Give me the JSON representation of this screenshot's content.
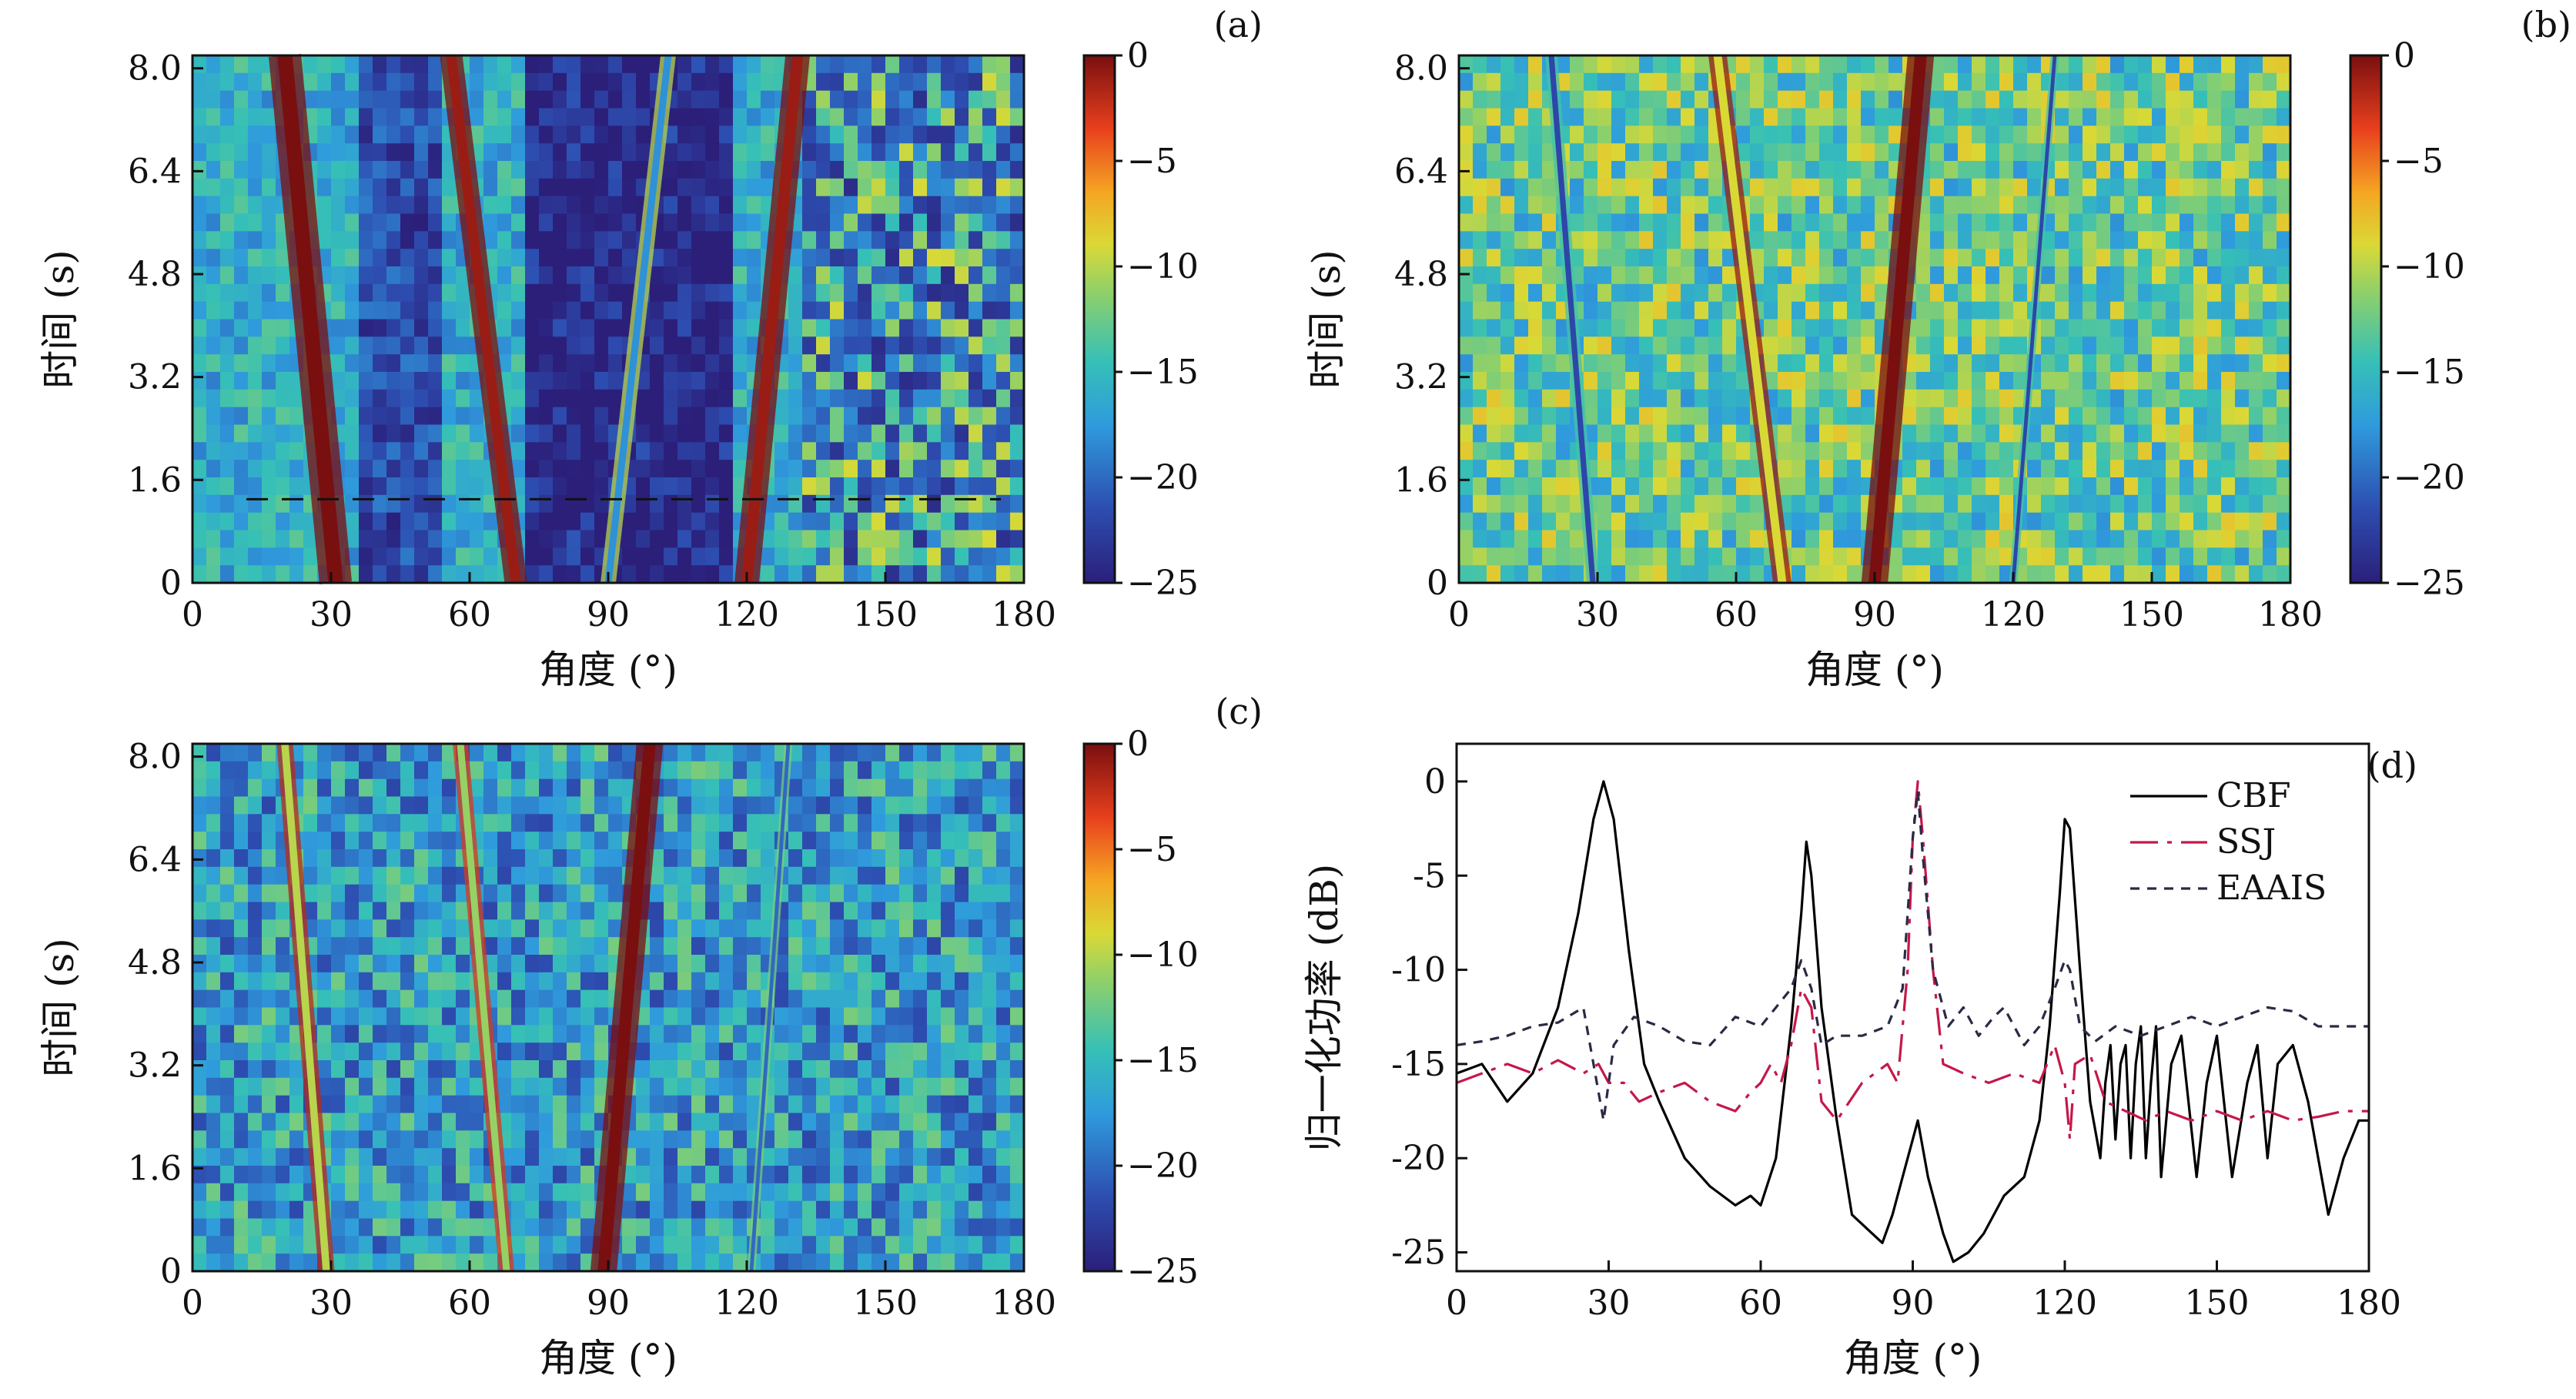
{
  "panels": [
    {
      "label": "(a)",
      "type": "heatmap",
      "xlabel": "角度 (°)",
      "ylabel": "时间 (s)",
      "xlim": [
        0,
        180
      ],
      "ylim": [
        0,
        8.2
      ],
      "xticks": [
        0,
        30,
        60,
        90,
        120,
        150,
        180
      ],
      "yticks": [
        "0",
        "1.6",
        "3.2",
        "4.8",
        "6.4",
        "8.0"
      ],
      "colorbar": {
        "range": [
          -25,
          0
        ],
        "ticks": [
          "0",
          "−5",
          "−10",
          "−15",
          "−20",
          "−25"
        ]
      },
      "background_db": -16,
      "tracks": [
        {
          "x0": 31,
          "x1": 20,
          "peak_db": 0,
          "width": 3.2
        },
        {
          "x0": 70,
          "x1": 56,
          "peak_db": -1,
          "width": 2.2
        },
        {
          "x0": 90,
          "x1": 103,
          "peak_db": -18,
          "width": 1.5
        },
        {
          "x0": 120,
          "x1": 131,
          "peak_db": -1,
          "width": 2.4
        }
      ],
      "dashed_line_time": 1.3
    },
    {
      "label": "(b)",
      "type": "heatmap",
      "xlabel": "角度 (°)",
      "ylabel": "时间 (s)",
      "xlim": [
        0,
        180
      ],
      "ylim": [
        0,
        8.2
      ],
      "xticks": [
        0,
        30,
        60,
        90,
        120,
        150,
        180
      ],
      "yticks": [
        "0",
        "1.6",
        "3.2",
        "4.8",
        "6.4",
        "8.0"
      ],
      "colorbar": {
        "range": [
          -25,
          0
        ],
        "ticks": [
          "0",
          "−5",
          "−10",
          "−15",
          "−20",
          "−25"
        ]
      },
      "background_db": -13,
      "tracks": [
        {
          "x0": 29,
          "x1": 20,
          "peak_db": -22,
          "width": 1.2
        },
        {
          "x0": 70,
          "x1": 56,
          "peak_db": -9,
          "width": 1.8
        },
        {
          "x0": 90,
          "x1": 100,
          "peak_db": 0,
          "width": 2.6
        },
        {
          "x0": 120,
          "x1": 129,
          "peak_db": -22,
          "width": 0.8
        }
      ]
    },
    {
      "label": "(c)",
      "type": "heatmap",
      "xlabel": "角度 (°)",
      "ylabel": "时间 (s)",
      "xlim": [
        0,
        180
      ],
      "ylim": [
        0,
        8.2
      ],
      "xticks": [
        0,
        30,
        60,
        90,
        120,
        150,
        180
      ],
      "yticks": [
        "0",
        "1.6",
        "3.2",
        "4.8",
        "6.4",
        "8.0"
      ],
      "colorbar": {
        "range": [
          -25,
          0
        ],
        "ticks": [
          "0",
          "−5",
          "−10",
          "−15",
          "−20",
          "−25"
        ]
      },
      "background_db": -17,
      "tracks": [
        {
          "x0": 29,
          "x1": 20,
          "peak_db": -10,
          "width": 1.6
        },
        {
          "x0": 68,
          "x1": 58,
          "peak_db": -11,
          "width": 1.5
        },
        {
          "x0": 89,
          "x1": 99,
          "peak_db": 0,
          "width": 2.6
        },
        {
          "x0": 121,
          "x1": 129,
          "peak_db": -20,
          "width": 0.8
        }
      ]
    },
    {
      "label": "(d)",
      "type": "line",
      "xlabel": "角度 (°)",
      "ylabel": "归一化功率 (dB)",
      "xlim": [
        0,
        180
      ],
      "ylim": [
        -26,
        2
      ],
      "xticks": [
        0,
        30,
        60,
        90,
        120,
        150,
        180
      ],
      "yticks": [
        0,
        -5,
        -10,
        -15,
        -20,
        -25
      ],
      "legend_position": "top-right"
    }
  ],
  "chart_data": {
    "type": "line",
    "xlabel": "角度 (°)",
    "ylabel": "归一化功率 (dB)",
    "xlim": [
      0,
      180
    ],
    "ylim": [
      -26,
      2
    ],
    "series": [
      {
        "name": "CBF",
        "color": "#000000",
        "dash": "solid",
        "points": [
          [
            0,
            -15.5
          ],
          [
            5,
            -15
          ],
          [
            10,
            -17
          ],
          [
            15,
            -15.5
          ],
          [
            20,
            -12
          ],
          [
            24,
            -7
          ],
          [
            27,
            -2
          ],
          [
            29,
            0
          ],
          [
            31,
            -2
          ],
          [
            34,
            -9
          ],
          [
            37,
            -15
          ],
          [
            40,
            -17
          ],
          [
            45,
            -20
          ],
          [
            50,
            -21.5
          ],
          [
            55,
            -22.5
          ],
          [
            58,
            -22
          ],
          [
            60,
            -22.5
          ],
          [
            63,
            -20
          ],
          [
            66,
            -13
          ],
          [
            68,
            -7
          ],
          [
            69,
            -3.2
          ],
          [
            70,
            -5
          ],
          [
            72,
            -12
          ],
          [
            75,
            -18
          ],
          [
            78,
            -23
          ],
          [
            82,
            -24
          ],
          [
            84,
            -24.5
          ],
          [
            86,
            -23
          ],
          [
            88,
            -21
          ],
          [
            90,
            -19
          ],
          [
            91,
            -18
          ],
          [
            93,
            -21
          ],
          [
            96,
            -24
          ],
          [
            98,
            -25.5
          ],
          [
            101,
            -25
          ],
          [
            104,
            -24
          ],
          [
            108,
            -22
          ],
          [
            112,
            -21
          ],
          [
            115,
            -18
          ],
          [
            117,
            -13
          ],
          [
            119,
            -6
          ],
          [
            120,
            -2
          ],
          [
            121,
            -2.5
          ],
          [
            123,
            -10
          ],
          [
            125,
            -17
          ],
          [
            127,
            -20
          ],
          [
            128,
            -16
          ],
          [
            129,
            -14
          ],
          [
            130,
            -19
          ],
          [
            131,
            -15
          ],
          [
            132,
            -14
          ],
          [
            133,
            -20
          ],
          [
            134,
            -15
          ],
          [
            135,
            -13
          ],
          [
            136,
            -20
          ],
          [
            137,
            -16
          ],
          [
            138,
            -13
          ],
          [
            139,
            -21
          ],
          [
            141,
            -15
          ],
          [
            143,
            -13.5
          ],
          [
            146,
            -21
          ],
          [
            148,
            -16
          ],
          [
            150,
            -13.5
          ],
          [
            153,
            -21
          ],
          [
            156,
            -16
          ],
          [
            158,
            -14
          ],
          [
            160,
            -20
          ],
          [
            162,
            -15
          ],
          [
            165,
            -14
          ],
          [
            168,
            -17
          ],
          [
            172,
            -23
          ],
          [
            175,
            -20
          ],
          [
            178,
            -18
          ],
          [
            180,
            -18
          ]
        ]
      },
      {
        "name": "SSJ",
        "color": "#c4184a",
        "dash": "long-dash",
        "points": [
          [
            0,
            -16
          ],
          [
            5,
            -15.5
          ],
          [
            10,
            -15
          ],
          [
            15,
            -15.5
          ],
          [
            20,
            -14.8
          ],
          [
            25,
            -15.5
          ],
          [
            28,
            -15
          ],
          [
            30,
            -16
          ],
          [
            33,
            -16
          ],
          [
            36,
            -17
          ],
          [
            40,
            -16.5
          ],
          [
            45,
            -16
          ],
          [
            50,
            -17
          ],
          [
            55,
            -17.5
          ],
          [
            58,
            -16.5
          ],
          [
            60,
            -16
          ],
          [
            62,
            -15
          ],
          [
            64,
            -16
          ],
          [
            66,
            -14
          ],
          [
            68,
            -11
          ],
          [
            70,
            -12
          ],
          [
            72,
            -17
          ],
          [
            75,
            -18
          ],
          [
            80,
            -16
          ],
          [
            85,
            -15
          ],
          [
            87,
            -16
          ],
          [
            89,
            -10
          ],
          [
            90,
            -3
          ],
          [
            91,
            0
          ],
          [
            92,
            -3
          ],
          [
            94,
            -10
          ],
          [
            96,
            -15
          ],
          [
            100,
            -15.5
          ],
          [
            105,
            -16
          ],
          [
            110,
            -15.5
          ],
          [
            115,
            -16
          ],
          [
            118,
            -14
          ],
          [
            120,
            -16
          ],
          [
            121,
            -19
          ],
          [
            122,
            -15
          ],
          [
            125,
            -14.5
          ],
          [
            128,
            -17
          ],
          [
            132,
            -17.5
          ],
          [
            136,
            -18
          ],
          [
            140,
            -17.5
          ],
          [
            145,
            -18
          ],
          [
            150,
            -17.5
          ],
          [
            155,
            -18
          ],
          [
            160,
            -17.5
          ],
          [
            165,
            -18
          ],
          [
            170,
            -17.8
          ],
          [
            175,
            -17.5
          ],
          [
            180,
            -17.5
          ]
        ]
      },
      {
        "name": "EAAIS",
        "color": "#2a2a44",
        "dash": "short-dash",
        "points": [
          [
            0,
            -14
          ],
          [
            5,
            -13.8
          ],
          [
            10,
            -13.5
          ],
          [
            15,
            -13
          ],
          [
            20,
            -12.8
          ],
          [
            25,
            -12
          ],
          [
            27,
            -15
          ],
          [
            29,
            -18
          ],
          [
            31,
            -14
          ],
          [
            35,
            -12.5
          ],
          [
            40,
            -13
          ],
          [
            45,
            -13.8
          ],
          [
            50,
            -14
          ],
          [
            55,
            -12.5
          ],
          [
            60,
            -13
          ],
          [
            63,
            -12
          ],
          [
            66,
            -11
          ],
          [
            68,
            -9.5
          ],
          [
            70,
            -11
          ],
          [
            72,
            -14
          ],
          [
            75,
            -13.5
          ],
          [
            80,
            -13.5
          ],
          [
            85,
            -13
          ],
          [
            88,
            -11
          ],
          [
            90,
            -3
          ],
          [
            91,
            -0.5
          ],
          [
            92,
            -4
          ],
          [
            94,
            -10
          ],
          [
            97,
            -13
          ],
          [
            100,
            -12
          ],
          [
            103,
            -13.5
          ],
          [
            106,
            -12.5
          ],
          [
            108,
            -12
          ],
          [
            112,
            -14
          ],
          [
            115,
            -13
          ],
          [
            118,
            -11
          ],
          [
            120,
            -9.5
          ],
          [
            121,
            -10
          ],
          [
            123,
            -13
          ],
          [
            126,
            -13.8
          ],
          [
            130,
            -13
          ],
          [
            135,
            -13.5
          ],
          [
            140,
            -13
          ],
          [
            145,
            -12.5
          ],
          [
            150,
            -13
          ],
          [
            155,
            -12.5
          ],
          [
            160,
            -12
          ],
          [
            165,
            -12.2
          ],
          [
            170,
            -13
          ],
          [
            175,
            -13
          ],
          [
            180,
            -13
          ]
        ]
      }
    ]
  }
}
